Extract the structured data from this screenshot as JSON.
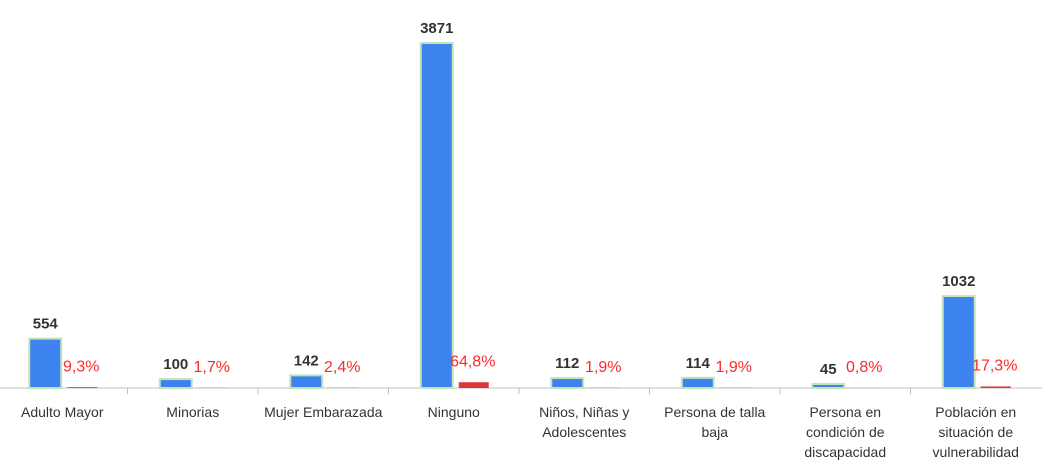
{
  "chart_data": {
    "type": "bar",
    "categories": [
      "Adulto Mayor",
      "Minorias",
      "Mujer Embarazada",
      "Ninguno",
      "Niños, Niñas y Adolescentes",
      "Persona de talla baja",
      "Persona en condición de discapacidad",
      "Población en situación de vulnerabilidad"
    ],
    "series": [
      {
        "color": "#3d83f0",
        "values": [
          554,
          100,
          142,
          3871,
          112,
          114,
          45,
          1032
        ]
      },
      {
        "color": "#e03535",
        "values": [
          9.3,
          1.7,
          2.4,
          64.8,
          1.9,
          1.9,
          0.8,
          17.3
        ],
        "value_labels": [
          "9,3%",
          "1,7%",
          "2,4%",
          "64,8%",
          "1,9%",
          "1,9%",
          "0,8%",
          "17,3%"
        ]
      }
    ]
  }
}
